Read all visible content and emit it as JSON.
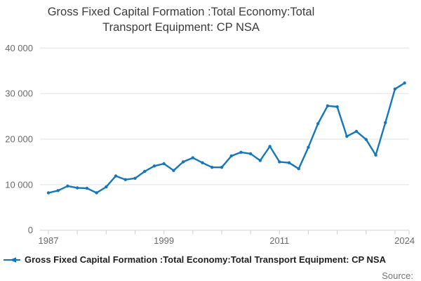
{
  "title": "Gross Fixed Capital Formation :Total Economy:Total Transport Equipment: CP NSA",
  "legend": {
    "label": "Gross Fixed Capital Formation :Total Economy:Total Transport Equipment: CP NSA",
    "marker_icon": "line-with-arrow-marker"
  },
  "footer": {
    "source_label": "Source:"
  },
  "colors": {
    "line": "#1377bd",
    "gridline": "#e2e2e2",
    "axis": "#c9d3e0",
    "tick_label": "#6b6b6b",
    "title_text": "#3d3d3d",
    "legend_text": "#1f1f1f",
    "source_text": "#757575",
    "background": "#ffffff"
  },
  "chart_data": {
    "type": "line",
    "title": "Gross Fixed Capital Formation :Total Economy:Total Transport Equipment: CP NSA",
    "xlabel": "",
    "ylabel": "",
    "grid": "horizontal",
    "legend_position": "bottom-left",
    "marker": "dot",
    "ylim": [
      0,
      40000
    ],
    "x": [
      1987,
      1988,
      1989,
      1990,
      1991,
      1992,
      1993,
      1994,
      1995,
      1996,
      1997,
      1998,
      1999,
      2000,
      2001,
      2002,
      2003,
      2004,
      2005,
      2006,
      2007,
      2008,
      2009,
      2010,
      2011,
      2012,
      2013,
      2014,
      2015,
      2016,
      2017,
      2018,
      2019,
      2020,
      2021,
      2022,
      2023,
      2024
    ],
    "series": [
      {
        "name": "Gross Fixed Capital Formation :Total Economy:Total Transport Equipment: CP NSA",
        "values": [
          8200,
          8700,
          9700,
          9300,
          9200,
          8200,
          9500,
          11900,
          11100,
          11400,
          12900,
          14100,
          14600,
          13100,
          15000,
          15900,
          14800,
          13800,
          13800,
          16300,
          17100,
          16800,
          15300,
          18400,
          15000,
          14800,
          13500,
          18200,
          23400,
          27300,
          27100,
          20600,
          21700,
          19900,
          16500,
          23600,
          31000,
          32300
        ]
      }
    ],
    "y_ticks": [
      {
        "value": 0,
        "label": "0"
      },
      {
        "value": 10000,
        "label": "10 000"
      },
      {
        "value": 20000,
        "label": "20 000"
      },
      {
        "value": 30000,
        "label": "30 000"
      },
      {
        "value": 40000,
        "label": "40 000"
      }
    ],
    "x_minor_tick_years": [
      1987,
      1990,
      1993,
      1996,
      1999,
      2002,
      2005,
      2008,
      2011,
      2014,
      2017,
      2020,
      2023
    ],
    "x_tick_labels": [
      {
        "year": 1987,
        "label": "1987"
      },
      {
        "year": 1999,
        "label": "1999"
      },
      {
        "year": 2011,
        "label": "2011"
      },
      {
        "year": 2024,
        "label": "2024"
      }
    ]
  }
}
